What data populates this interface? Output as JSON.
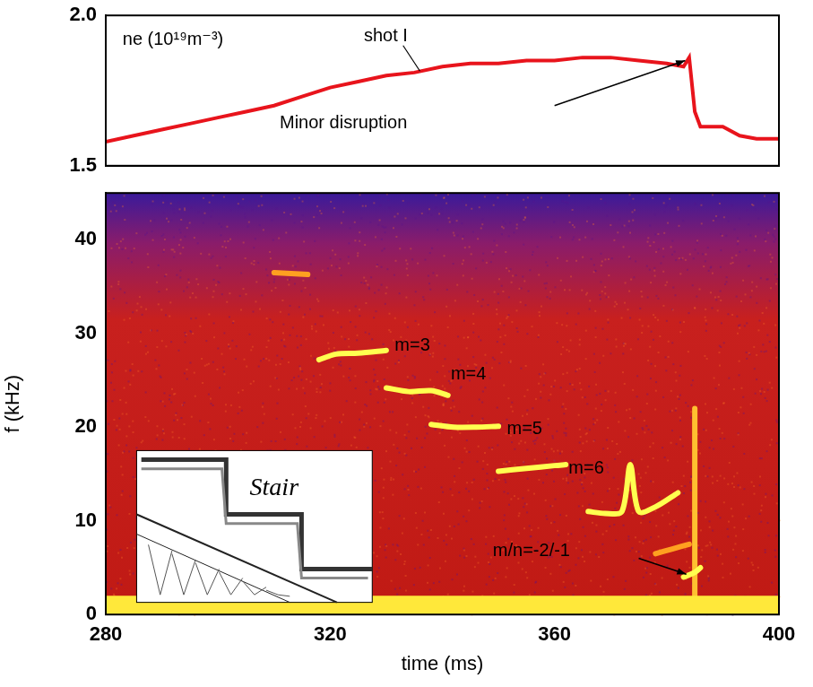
{
  "chart_data": [
    {
      "type": "line",
      "annotations": [
        "ne (10¹⁹m⁻³)",
        "shot I",
        "Minor disruption"
      ],
      "x": [
        280,
        285,
        290,
        295,
        300,
        305,
        310,
        315,
        320,
        325,
        330,
        335,
        340,
        345,
        350,
        355,
        360,
        365,
        370,
        375,
        380,
        383,
        384,
        385,
        386,
        390,
        393,
        396,
        400
      ],
      "values": [
        1.58,
        1.6,
        1.62,
        1.64,
        1.66,
        1.68,
        1.7,
        1.73,
        1.76,
        1.78,
        1.8,
        1.81,
        1.83,
        1.84,
        1.84,
        1.85,
        1.85,
        1.86,
        1.86,
        1.85,
        1.84,
        1.83,
        1.86,
        1.68,
        1.63,
        1.63,
        1.6,
        1.59,
        1.59
      ],
      "color": "#e8141c",
      "xlim": [
        280,
        400
      ],
      "xticks": [
        280,
        320,
        360,
        400
      ],
      "ylim": [
        1.5,
        2.0
      ],
      "yticks": [
        1.5,
        {
          "value": 2.0,
          "label": "2.0"
        }
      ],
      "grid": false,
      "tick_labels": "y"
    },
    {
      "type": "spectrogram",
      "x_label": "time (ms)",
      "y_label": "f (kHz)",
      "annotations": [
        "m=3",
        "m=4",
        "m=5",
        "m=6",
        "m/n=-2/-1",
        "Stair"
      ],
      "series": [
        {
          "type": "area",
          "color": "#ffe83a",
          "x": [
            280,
            400
          ],
          "values": [
            2,
            2
          ]
        },
        {
          "color": "#ffa020",
          "x": [
            310,
            313,
            316
          ],
          "values": [
            36.5,
            36.4,
            36.3
          ]
        },
        {
          "color": "#ffff50",
          "x": [
            318,
            321,
            325,
            330
          ],
          "values": [
            27.2,
            27.8,
            27.9,
            28.2
          ]
        },
        {
          "color": "#ffff50",
          "x": [
            330,
            334,
            338,
            341
          ],
          "values": [
            24.2,
            23.8,
            23.9,
            23.4
          ]
        },
        {
          "color": "#ffff50",
          "x": [
            338,
            342,
            346,
            350
          ],
          "values": [
            20.3,
            20.0,
            20.0,
            20.1
          ]
        },
        {
          "color": "#ffff50",
          "x": [
            350,
            355,
            360,
            362
          ],
          "values": [
            15.3,
            15.6,
            15.9,
            16.0
          ]
        },
        {
          "color": "#ffff50",
          "x": [
            366,
            369,
            372,
            373.5,
            375,
            378,
            382
          ],
          "values": [
            11.0,
            10.8,
            11.0,
            16.0,
            11.0,
            11.5,
            13.0
          ]
        },
        {
          "color": "#ffa020",
          "x": [
            378,
            381,
            384
          ],
          "values": [
            6.5,
            7.0,
            7.5
          ]
        },
        {
          "color": "#ffff50",
          "x": [
            383,
            385,
            386
          ],
          "values": [
            4.0,
            4.5,
            5.0
          ]
        },
        {
          "color": "#ffc030",
          "x": [
            385,
            385
          ],
          "values": [
            0,
            22
          ]
        }
      ],
      "xlim": [
        280,
        400
      ],
      "xticks": [
        280,
        320,
        360,
        400
      ],
      "ylim": [
        0,
        45
      ],
      "yticks": [
        0,
        10,
        20,
        30,
        40
      ],
      "grid": false
    }
  ]
}
